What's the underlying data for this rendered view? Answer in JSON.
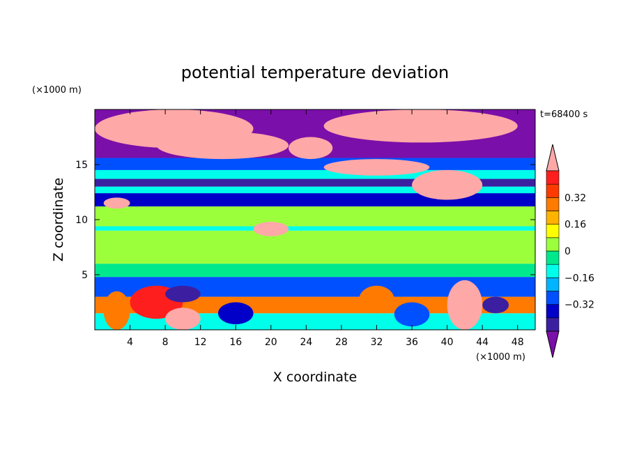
{
  "chart_data": {
    "type": "heatmap",
    "title": "potential temperature deviation",
    "xlabel": "X coordinate",
    "ylabel": "Z coordinate",
    "x_unit": "(×1000 m)",
    "y_unit": "(×1000 m)",
    "time_label": "t=68400 s",
    "xlim": [
      0,
      50
    ],
    "ylim": [
      0,
      20
    ],
    "x_ticks": [
      "4",
      "8",
      "12",
      "16",
      "20",
      "24",
      "28",
      "32",
      "36",
      "40",
      "44",
      "48"
    ],
    "x_tick_values": [
      4,
      8,
      12,
      16,
      20,
      24,
      28,
      32,
      36,
      40,
      44,
      48
    ],
    "y_ticks": [
      "5",
      "10",
      "15"
    ],
    "y_tick_values": [
      5,
      10,
      15
    ],
    "colorbar": {
      "levels": [
        -0.48,
        -0.4,
        -0.32,
        -0.24,
        -0.16,
        -0.08,
        0,
        0.08,
        0.16,
        0.24,
        0.32,
        0.4,
        0.48
      ],
      "labels": [
        "0.32",
        "0.16",
        "0",
        "−0.16",
        "−0.32"
      ],
      "label_values": [
        0.32,
        0.16,
        0,
        -0.16,
        -0.32
      ],
      "colors": [
        "#7b0fa9",
        "#3c1fa0",
        "#0000c8",
        "#0050ff",
        "#00b4ff",
        "#00ffea",
        "#00e88c",
        "#9cff3c",
        "#ffff00",
        "#ffb300",
        "#ff7a00",
        "#ff3a00",
        "#ff1e1e",
        "#ffa8a8"
      ],
      "extend": "both"
    },
    "bands": [
      {
        "z": [
          0.0,
          1.5
        ],
        "value": -0.16
      },
      {
        "z": [
          1.5,
          3.0
        ],
        "value": 0.24
      },
      {
        "z": [
          3.0,
          4.8
        ],
        "value": -0.3
      },
      {
        "z": [
          4.8,
          6.0
        ],
        "value": -0.05
      },
      {
        "z": [
          6.0,
          9.0
        ],
        "value": 0.05
      },
      {
        "z": [
          9.0,
          9.4
        ],
        "value": -0.1
      },
      {
        "z": [
          9.4,
          11.2
        ],
        "value": 0.05
      },
      {
        "z": [
          11.2,
          12.4
        ],
        "value": -0.36
      },
      {
        "z": [
          12.4,
          13.0
        ],
        "value": -0.12
      },
      {
        "z": [
          13.0,
          13.7
        ],
        "value": -0.42
      },
      {
        "z": [
          13.7,
          14.5
        ],
        "value": -0.12
      },
      {
        "z": [
          14.5,
          15.6
        ],
        "value": -0.3
      },
      {
        "z": [
          15.6,
          20.0
        ],
        "value": -0.5
      }
    ],
    "patches": [
      {
        "x": [
          0,
          18
        ],
        "z": [
          16.5,
          20
        ],
        "value": 0.5
      },
      {
        "x": [
          7,
          22
        ],
        "z": [
          15.5,
          18
        ],
        "value": 0.5
      },
      {
        "x": [
          22,
          27
        ],
        "z": [
          15.5,
          17.5
        ],
        "value": 0.5
      },
      {
        "x": [
          26,
          38
        ],
        "z": [
          14,
          15.5
        ],
        "value": 0.5
      },
      {
        "x": [
          26,
          48
        ],
        "z": [
          17,
          20
        ],
        "value": 0.5
      },
      {
        "x": [
          36,
          44
        ],
        "z": [
          11.8,
          14.5
        ],
        "value": 0.5
      },
      {
        "x": [
          1,
          4
        ],
        "z": [
          11,
          12
        ],
        "value": 0.5
      },
      {
        "x": [
          18,
          22
        ],
        "z": [
          8.5,
          9.8
        ],
        "value": 0.5
      },
      {
        "x": [
          1,
          4
        ],
        "z": [
          0,
          3.5
        ],
        "value": 0.3
      },
      {
        "x": [
          4,
          10
        ],
        "z": [
          1,
          4
        ],
        "value": 0.4
      },
      {
        "x": [
          8,
          12
        ],
        "z": [
          0,
          2
        ],
        "value": 0.5
      },
      {
        "x": [
          30,
          34
        ],
        "z": [
          1.5,
          4
        ],
        "value": 0.3
      },
      {
        "x": [
          40,
          44
        ],
        "z": [
          0,
          4.5
        ],
        "value": 0.5
      },
      {
        "x": [
          8,
          12
        ],
        "z": [
          2.5,
          4
        ],
        "value": -0.42
      },
      {
        "x": [
          14,
          18
        ],
        "z": [
          0.5,
          2.5
        ],
        "value": -0.38
      },
      {
        "x": [
          34,
          38
        ],
        "z": [
          0.3,
          2.5
        ],
        "value": -0.3
      },
      {
        "x": [
          44,
          47
        ],
        "z": [
          1.5,
          3
        ],
        "value": -0.42
      }
    ]
  }
}
